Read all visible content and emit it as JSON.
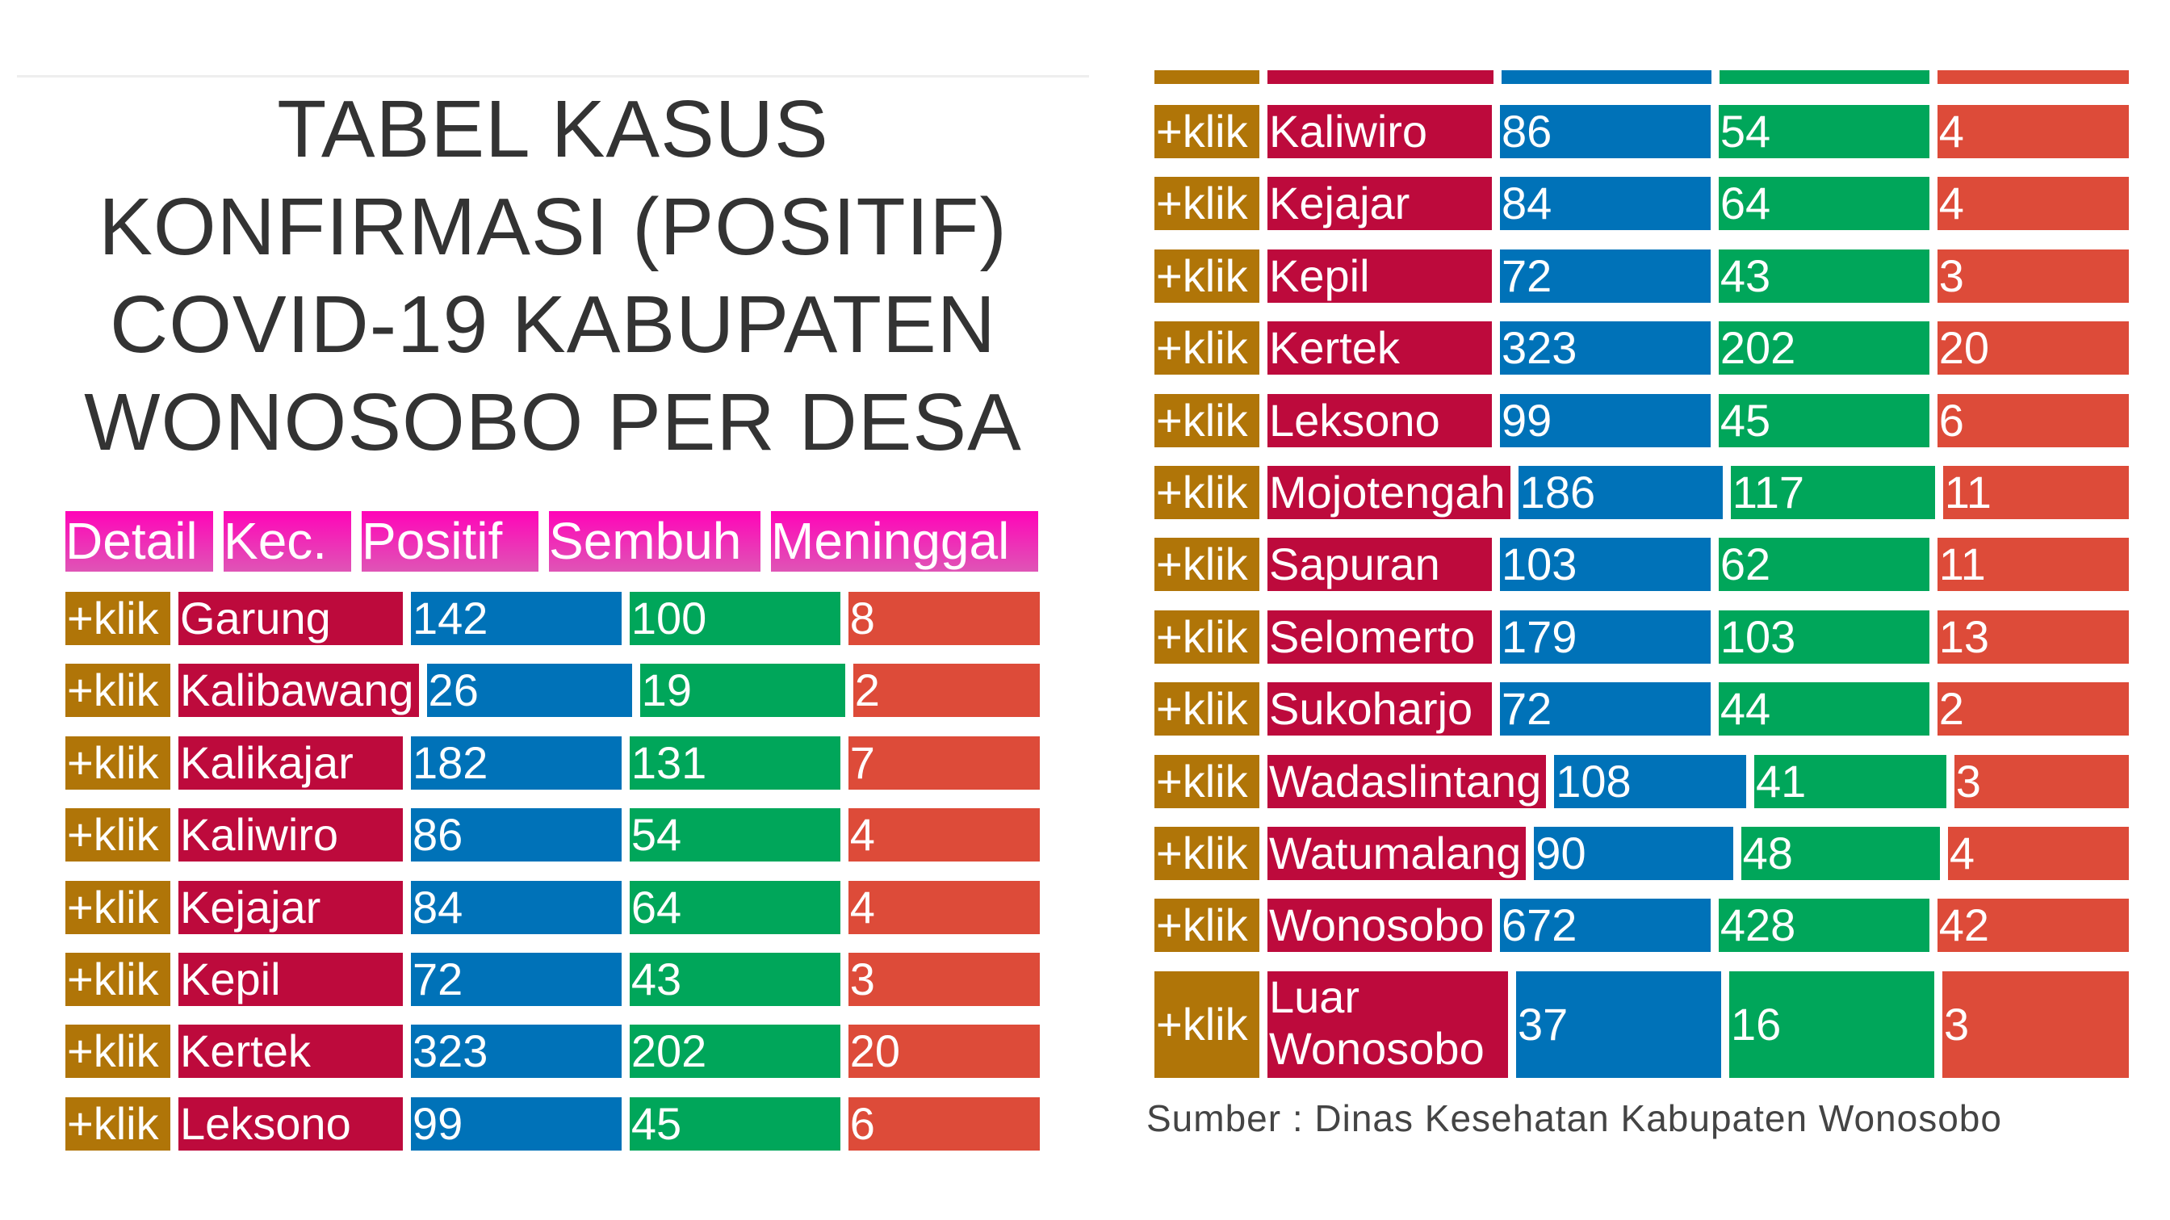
{
  "title_lines": [
    "TABEL KASUS",
    "KONFIRMASI (POSITIF)",
    "COVID-19 KABUPATEN",
    "WONOSOBO PER DESA"
  ],
  "header": {
    "detail": "Detail",
    "kec": "Kec.",
    "positif": "Positif",
    "sembuh": "Sembuh",
    "meninggal": "Meninggal"
  },
  "klik_label": "+klik",
  "colors": {
    "header_top": "#ff04b8",
    "header_bottom": "#df55b6",
    "klik": "#b07508",
    "name": "#bd0a3c",
    "positif": "#0072b8",
    "sembuh": "#00a65a",
    "meninggal": "#dd4b39"
  },
  "left_rows": [
    {
      "kec": "Garung",
      "positif": "142",
      "sembuh": "100",
      "meninggal": "8"
    },
    {
      "kec": "Kalibawang",
      "positif": "26",
      "sembuh": "19",
      "meninggal": "2"
    },
    {
      "kec": "Kalikajar",
      "positif": "182",
      "sembuh": "131",
      "meninggal": "7"
    },
    {
      "kec": "Kaliwiro",
      "positif": "86",
      "sembuh": "54",
      "meninggal": "4"
    },
    {
      "kec": "Kejajar",
      "positif": "84",
      "sembuh": "64",
      "meninggal": "4"
    },
    {
      "kec": "Kepil",
      "positif": "72",
      "sembuh": "43",
      "meninggal": "3"
    },
    {
      "kec": "Kertek",
      "positif": "323",
      "sembuh": "202",
      "meninggal": "20"
    },
    {
      "kec": "Leksono",
      "positif": "99",
      "sembuh": "45",
      "meninggal": "6"
    }
  ],
  "right_rows": [
    {
      "kec": "Kaliwiro",
      "positif": "86",
      "sembuh": "54",
      "meninggal": "4"
    },
    {
      "kec": "Kejajar",
      "positif": "84",
      "sembuh": "64",
      "meninggal": "4"
    },
    {
      "kec": "Kepil",
      "positif": "72",
      "sembuh": "43",
      "meninggal": "3"
    },
    {
      "kec": "Kertek",
      "positif": "323",
      "sembuh": "202",
      "meninggal": "20"
    },
    {
      "kec": "Leksono",
      "positif": "99",
      "sembuh": "45",
      "meninggal": "6"
    },
    {
      "kec": "Mojotengah",
      "positif": "186",
      "sembuh": "117",
      "meninggal": "11"
    },
    {
      "kec": "Sapuran",
      "positif": "103",
      "sembuh": "62",
      "meninggal": "11"
    },
    {
      "kec": "Selomerto",
      "positif": "179",
      "sembuh": "103",
      "meninggal": "13"
    },
    {
      "kec": "Sukoharjo",
      "positif": "72",
      "sembuh": "44",
      "meninggal": "2"
    },
    {
      "kec": "Wadaslintang",
      "positif": "108",
      "sembuh": "41",
      "meninggal": "3"
    },
    {
      "kec": "Watumalang",
      "positif": "90",
      "sembuh": "48",
      "meninggal": "4"
    },
    {
      "kec": "Wonosobo",
      "positif": "672",
      "sembuh": "428",
      "meninggal": "42"
    },
    {
      "kec": "Luar Wonosobo",
      "positif": "37",
      "sembuh": "16",
      "meninggal": "3"
    }
  ],
  "source": "Sumber : Dinas Kesehatan Kabupaten Wonosobo"
}
